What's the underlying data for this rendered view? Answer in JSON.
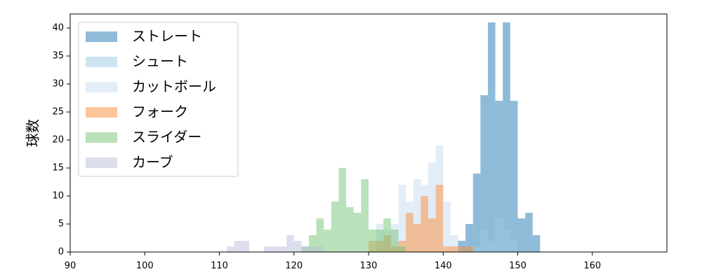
{
  "chart_data": {
    "type": "histogram",
    "ylabel": "球数",
    "xlim": [
      90,
      170
    ],
    "ylim": [
      0,
      42.5
    ],
    "xticks": [
      90,
      100,
      110,
      120,
      130,
      140,
      150,
      160
    ],
    "yticks": [
      0,
      5,
      10,
      15,
      20,
      25,
      30,
      35,
      40
    ],
    "alpha": 0.5,
    "legend": "upper left",
    "series": [
      {
        "name": "ストレート",
        "color": "#1f77b4",
        "bins": [
          142,
          143,
          144,
          145,
          146,
          147,
          148,
          149,
          150,
          151,
          152,
          153
        ],
        "values": [
          2,
          5,
          14,
          28,
          41,
          27,
          41,
          27,
          6,
          7,
          3
        ]
      },
      {
        "name": "シュート",
        "color": "#9ecae1",
        "bins": [
          144,
          145,
          146,
          147,
          148,
          149,
          150
        ],
        "values": [
          1,
          4,
          2,
          6,
          4,
          2
        ]
      },
      {
        "name": "カットボール",
        "color": "#c6dbef",
        "bins": [
          131,
          132,
          133,
          134,
          135,
          136,
          137,
          138,
          139,
          140,
          141,
          142
        ],
        "values": [
          5,
          4,
          5,
          12,
          9,
          13,
          12,
          16,
          19,
          9,
          3
        ]
      },
      {
        "name": "フォーク",
        "color": "#fd8d3c",
        "bins": [
          130,
          131,
          132,
          133,
          134,
          135,
          136,
          137,
          138,
          139,
          140,
          141,
          142,
          143,
          144
        ],
        "values": [
          2,
          2,
          3,
          1,
          2,
          7,
          5,
          10,
          6,
          12,
          1,
          1,
          1,
          1
        ]
      },
      {
        "name": "スライダー",
        "color": "#74c476",
        "bins": [
          121,
          122,
          123,
          124,
          125,
          126,
          127,
          128,
          129,
          130,
          131,
          132,
          133,
          134,
          135
        ],
        "values": [
          1,
          3,
          6,
          4,
          9,
          15,
          8,
          7,
          13,
          4,
          4,
          6,
          4,
          1
        ]
      },
      {
        "name": "カーブ",
        "color": "#bcbddc",
        "bins": [
          111,
          112,
          113,
          114,
          115,
          116,
          117,
          118,
          119,
          120,
          121,
          122,
          123,
          124
        ],
        "values": [
          1,
          2,
          2,
          0,
          0,
          1,
          1,
          1,
          3,
          2,
          1,
          1,
          1
        ]
      }
    ]
  }
}
